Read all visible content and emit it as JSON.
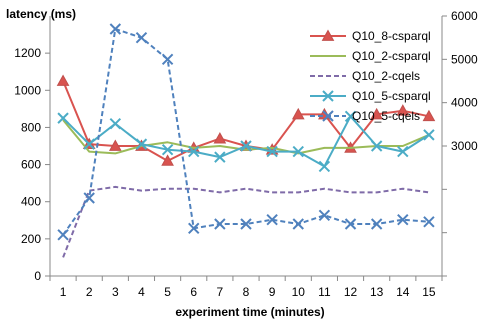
{
  "chart_data": {
    "type": "line",
    "title": "",
    "xlabel": "experiment time (minutes)",
    "ylabel": "latency (ms)",
    "x": [
      1,
      2,
      3,
      4,
      5,
      6,
      7,
      8,
      9,
      10,
      11,
      12,
      13,
      14,
      15
    ],
    "xticks": [
      "1",
      "2",
      "3",
      "4",
      "5",
      "6",
      "7",
      "8",
      "9",
      "10",
      "11",
      "12",
      "13",
      "14",
      "15"
    ],
    "y_left": {
      "lim": [
        0,
        1400
      ],
      "ticks": [
        0,
        200,
        400,
        600,
        800,
        1000,
        1200
      ]
    },
    "y_right": {
      "lim": [
        0,
        6000
      ],
      "ticks": [
        3000,
        4000,
        5000,
        6000
      ]
    },
    "grid": false,
    "legend_position": "top-right",
    "series": [
      {
        "name": "Q10_8-csparql",
        "axis": "left",
        "color": "#D9534F",
        "line_style": "solid",
        "marker": "triangle",
        "values": [
          1050,
          710,
          700,
          700,
          620,
          690,
          740,
          700,
          680,
          870,
          870,
          690,
          870,
          890,
          860
        ]
      },
      {
        "name": "Q10_2-csparql",
        "axis": "left",
        "color": "#9BBB59",
        "line_style": "solid",
        "marker": "none",
        "values": [
          840,
          670,
          660,
          700,
          720,
          690,
          700,
          680,
          690,
          660,
          690,
          690,
          700,
          700,
          760
        ]
      },
      {
        "name": "Q10_2-cqels",
        "axis": "left",
        "color": "#7F6BA8",
        "line_style": "dashed",
        "marker": "none",
        "values": [
          100,
          460,
          480,
          460,
          470,
          470,
          450,
          470,
          450,
          450,
          470,
          450,
          450,
          470,
          450
        ]
      },
      {
        "name": "Q10_5-csparql",
        "axis": "left",
        "color": "#4BACC6",
        "line_style": "solid",
        "marker": "x",
        "values": [
          850,
          710,
          820,
          710,
          680,
          670,
          640,
          700,
          670,
          670,
          590,
          860,
          700,
          670,
          760
        ]
      },
      {
        "name": "Q10_5-cqels",
        "axis": "right",
        "color": "#4F81BD",
        "line_style": "dashed",
        "marker": "x",
        "values": [
          950,
          1800,
          5700,
          5500,
          5000,
          1100,
          1200,
          1200,
          1300,
          1200,
          1400,
          1200,
          1200,
          1300,
          1250
        ]
      }
    ]
  }
}
